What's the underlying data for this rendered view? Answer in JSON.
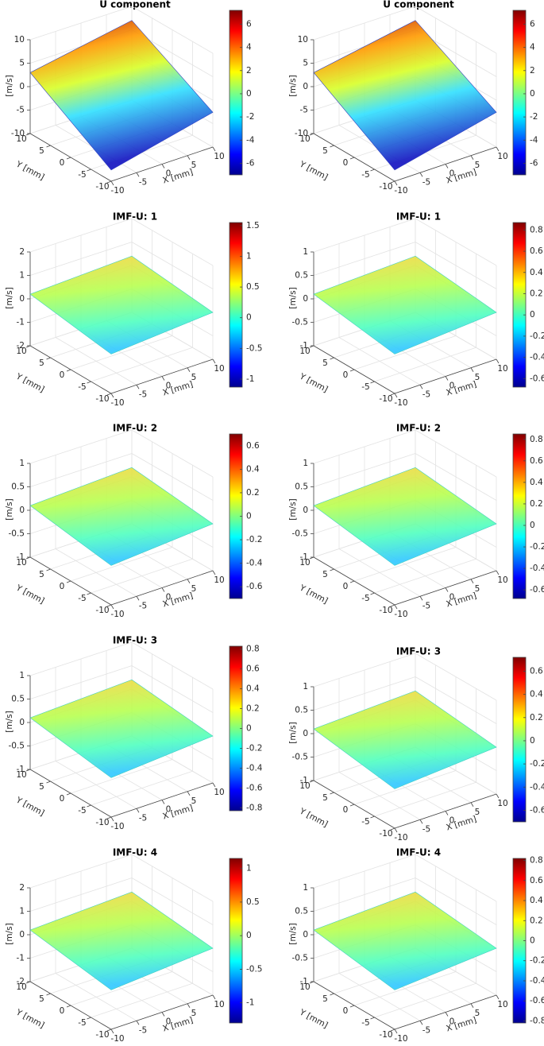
{
  "chart_data": [
    {
      "type": "surface",
      "title": "U component",
      "zlabel": "[m/s]",
      "xlabel": "X [mm]",
      "ylabel": "Y [mm]",
      "colormap": "jet",
      "grid": true,
      "xlim": [
        -10,
        10
      ],
      "xticks": [
        -10,
        -5,
        0,
        5,
        10
      ],
      "ylim": [
        -10,
        10
      ],
      "yticks": [
        10,
        5,
        0,
        -5,
        -10
      ],
      "zlim": [
        -10,
        10
      ],
      "zticks": [
        -10,
        -5,
        0,
        5,
        10
      ],
      "clim": [
        -7,
        7.2
      ],
      "cticks": [
        -6,
        -4,
        -2,
        0,
        2,
        4,
        6
      ]
    },
    {
      "type": "surface",
      "title": "U component",
      "zlabel": "[m/s]",
      "xlabel": "X [mm]",
      "ylabel": "Y [mm]",
      "colormap": "jet",
      "grid": true,
      "xlim": [
        -10,
        10
      ],
      "xticks": [
        -10,
        -5,
        0,
        5,
        10
      ],
      "ylim": [
        -10,
        10
      ],
      "yticks": [
        10,
        5,
        0,
        -5,
        -10
      ],
      "zlim": [
        -10,
        10
      ],
      "zticks": [
        -10,
        -5,
        0,
        5,
        10
      ],
      "clim": [
        -7,
        7.2
      ],
      "cticks": [
        -6,
        -4,
        -2,
        0,
        2,
        4,
        6
      ]
    },
    {
      "type": "surface",
      "title": "IMF-U: 1",
      "zlabel": "[m/s]",
      "xlabel": "X [mm]",
      "ylabel": "Y [mm]",
      "colormap": "jet",
      "grid": true,
      "xlim": [
        -10,
        10
      ],
      "xticks": [
        -10,
        -5,
        0,
        5,
        10
      ],
      "ylim": [
        -10,
        10
      ],
      "yticks": [
        10,
        5,
        0,
        -5,
        -10
      ],
      "zlim": [
        -2,
        2
      ],
      "zticks": [
        -2,
        -1,
        0,
        1,
        2
      ],
      "clim": [
        -1.13,
        1.55
      ],
      "cticks": [
        -1,
        -0.5,
        0,
        0.5,
        1,
        1.5
      ]
    },
    {
      "type": "surface",
      "title": "IMF-U: 1",
      "zlabel": "[m/s]",
      "xlabel": "X [mm]",
      "ylabel": "Y [mm]",
      "colormap": "jet",
      "grid": true,
      "xlim": [
        -10,
        10
      ],
      "xticks": [
        -10,
        -5,
        0,
        5,
        10
      ],
      "ylim": [
        -10,
        10
      ],
      "yticks": [
        10,
        5,
        0,
        -5,
        -10
      ],
      "zlim": [
        -1,
        1
      ],
      "zticks": [
        -1,
        -0.5,
        0,
        0.5,
        1
      ],
      "clim": [
        -0.68,
        0.87
      ],
      "cticks": [
        -0.6,
        -0.4,
        -0.2,
        0,
        0.2,
        0.4,
        0.6,
        0.8
      ]
    },
    {
      "type": "surface",
      "title": "IMF-U: 2",
      "zlabel": "[m/s]",
      "xlabel": "X [mm]",
      "ylabel": "Y [mm]",
      "colormap": "jet",
      "grid": true,
      "xlim": [
        -10,
        10
      ],
      "xticks": [
        -10,
        -5,
        0,
        5,
        10
      ],
      "ylim": [
        -10,
        10
      ],
      "yticks": [
        10,
        5,
        0,
        -5,
        -10
      ],
      "zlim": [
        -1,
        1
      ],
      "zticks": [
        -1,
        -0.5,
        0,
        0.5,
        1
      ],
      "clim": [
        -0.7,
        0.7
      ],
      "cticks": [
        -0.6,
        -0.4,
        -0.2,
        0,
        0.2,
        0.4,
        0.6
      ]
    },
    {
      "type": "surface",
      "title": "IMF-U: 2",
      "zlabel": "[m/s]",
      "xlabel": "X [mm]",
      "ylabel": "Y [mm]",
      "colormap": "jet",
      "grid": true,
      "xlim": [
        -10,
        10
      ],
      "xticks": [
        -10,
        -5,
        0,
        5,
        10
      ],
      "ylim": [
        -10,
        10
      ],
      "yticks": [
        10,
        5,
        0,
        -5,
        -10
      ],
      "zlim": [
        -1,
        1
      ],
      "zticks": [
        -1,
        -0.5,
        0,
        0.5,
        1
      ],
      "clim": [
        -0.68,
        0.85
      ],
      "cticks": [
        -0.6,
        -0.4,
        -0.2,
        0,
        0.2,
        0.4,
        0.6,
        0.8
      ]
    },
    {
      "type": "surface",
      "title": "IMF-U: 3",
      "zlabel": "[m/s]",
      "xlabel": "X [mm]",
      "ylabel": "Y [mm]",
      "colormap": "jet",
      "grid": true,
      "xlim": [
        -10,
        10
      ],
      "xticks": [
        -10,
        -5,
        0,
        5,
        10
      ],
      "ylim": [
        -10,
        10
      ],
      "yticks": [
        10,
        5,
        0,
        -5,
        -10
      ],
      "zlim": [
        -1,
        1
      ],
      "zticks": [
        -1,
        -0.5,
        0,
        0.5,
        1
      ],
      "clim": [
        -0.83,
        0.83
      ],
      "cticks": [
        -0.8,
        -0.6,
        -0.4,
        -0.2,
        0,
        0.2,
        0.4,
        0.6,
        0.8
      ]
    },
    {
      "type": "surface",
      "title": "IMF-U: 3",
      "zlabel": "[m/s]",
      "xlabel": "X [mm]",
      "ylabel": "Y [mm]",
      "colormap": "jet",
      "grid": true,
      "xlim": [
        -10,
        10
      ],
      "xticks": [
        -10,
        -5,
        0,
        5,
        10
      ],
      "ylim": [
        -10,
        10
      ],
      "yticks": [
        10,
        5,
        0,
        -5,
        -10
      ],
      "zlim": [
        -1,
        1
      ],
      "zticks": [
        -1,
        -0.5,
        0,
        0.5,
        1
      ],
      "clim": [
        -0.7,
        0.72
      ],
      "cticks": [
        -0.6,
        -0.4,
        -0.2,
        0,
        0.2,
        0.4,
        0.6
      ]
    },
    {
      "type": "surface",
      "title": "IMF-U: 4",
      "zlabel": "[m/s]",
      "xlabel": "X [mm]",
      "ylabel": "Y [mm]",
      "colormap": "jet",
      "grid": true,
      "xlim": [
        -10,
        10
      ],
      "xticks": [
        -10,
        -5,
        0,
        5,
        10
      ],
      "ylim": [
        -10,
        10
      ],
      "yticks": [
        10,
        5,
        0,
        -5,
        -10
      ],
      "zlim": [
        -2,
        2
      ],
      "zticks": [
        -2,
        -1,
        0,
        1,
        2
      ],
      "clim": [
        -1.3,
        1.15
      ],
      "cticks": [
        -1,
        -0.5,
        0,
        0.5,
        1
      ]
    },
    {
      "type": "surface",
      "title": "IMF-U: 4",
      "zlabel": "[m/s]",
      "xlabel": "X [mm]",
      "ylabel": "Y [mm]",
      "colormap": "jet",
      "grid": true,
      "xlim": [
        -10,
        10
      ],
      "xticks": [
        -10,
        -5,
        0,
        5,
        10
      ],
      "ylim": [
        -10,
        10
      ],
      "yticks": [
        10,
        5,
        0,
        -5,
        -10
      ],
      "zlim": [
        -1,
        1
      ],
      "zticks": [
        -1,
        -0.5,
        0,
        0.5,
        1
      ],
      "clim": [
        -0.82,
        0.82
      ],
      "cticks": [
        -0.8,
        -0.6,
        -0.4,
        -0.2,
        0,
        0.2,
        0.4,
        0.6,
        0.8
      ]
    }
  ]
}
